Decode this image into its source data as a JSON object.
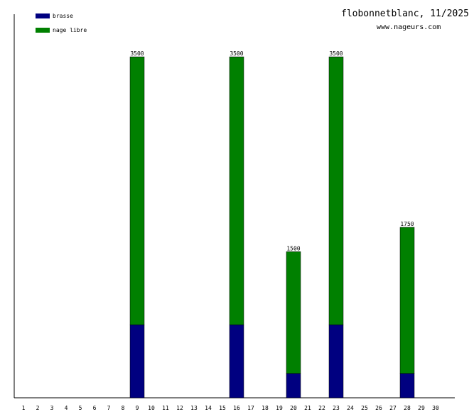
{
  "chart_data": {
    "type": "bar",
    "stacked": true,
    "title": "flobonnetblanc, 11/2025",
    "subtitle": "www.nageurs.com",
    "categories": [
      "1",
      "2",
      "3",
      "4",
      "5",
      "6",
      "7",
      "8",
      "9",
      "10",
      "11",
      "12",
      "13",
      "14",
      "15",
      "16",
      "17",
      "18",
      "19",
      "20",
      "21",
      "22",
      "23",
      "24",
      "25",
      "26",
      "27",
      "28",
      "29",
      "30"
    ],
    "series": [
      {
        "name": "brasse",
        "color": "#000080",
        "values": [
          0,
          0,
          0,
          0,
          0,
          0,
          0,
          0,
          750,
          0,
          0,
          0,
          0,
          0,
          0,
          750,
          0,
          0,
          0,
          250,
          0,
          0,
          750,
          0,
          0,
          0,
          0,
          250,
          0,
          0
        ]
      },
      {
        "name": "nage libre",
        "color": "#008000",
        "values": [
          0,
          0,
          0,
          0,
          0,
          0,
          0,
          0,
          2750,
          0,
          0,
          0,
          0,
          0,
          0,
          2750,
          0,
          0,
          0,
          1250,
          0,
          0,
          2750,
          0,
          0,
          0,
          0,
          1500,
          0,
          0
        ]
      }
    ],
    "totals": [
      0,
      0,
      0,
      0,
      0,
      0,
      0,
      0,
      3500,
      0,
      0,
      0,
      0,
      0,
      0,
      3500,
      0,
      0,
      0,
      1500,
      0,
      0,
      3500,
      0,
      0,
      0,
      0,
      1750,
      0,
      0
    ],
    "ylim": [
      0,
      3500
    ],
    "legend": "top-left",
    "grid": false
  }
}
